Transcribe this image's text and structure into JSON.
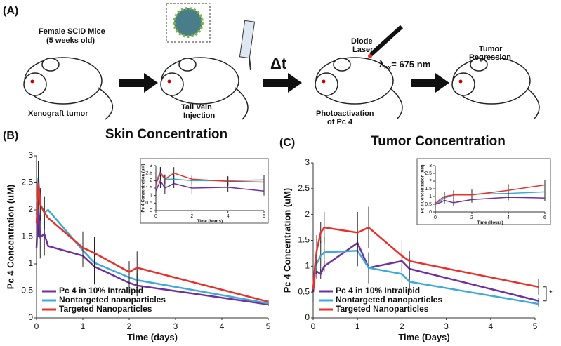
{
  "schematic": {
    "panel_label": "(A)",
    "mice_label_1": "Female SCID Mice",
    "mice_label_2": "(5 weeks old)",
    "tumor_label": "Xenograft tumor",
    "injection_1": "Tail Vein",
    "injection_2": "Injection",
    "delay": "Δt",
    "laser_1": "Diode",
    "laser_2": "Laser",
    "wavelength_symbol": "λ",
    "wavelength_subscript": "ex",
    "wavelength_text": "= 675 nm",
    "photo_1": "Photoactivation",
    "photo_2": "of Pc 4",
    "result_1": "Tumor",
    "result_2": "Regression"
  },
  "chart_data": [
    {
      "type": "line",
      "panel_label": "(B)",
      "title": "Skin Concentration",
      "xlabel": "Time (days)",
      "ylabel": "Pc 4 Concentration (uM)",
      "x": [
        0,
        0.04,
        0.08,
        0.17,
        0.25,
        1,
        1.25,
        2,
        2.17,
        5
      ],
      "xlim": [
        0,
        5
      ],
      "xticks": [
        0,
        1,
        2,
        3,
        4,
        5
      ],
      "ylim": [
        0,
        3
      ],
      "yticks": [
        0,
        0.5,
        1,
        1.5,
        2,
        2.5,
        3
      ],
      "legend": "lower left",
      "series": [
        {
          "name": "Pc 4 in 10% Intralipid",
          "color": "#7030a0",
          "values": [
            1.3,
            2.0,
            1.5,
            1.55,
            1.33,
            1.15,
            0.95,
            0.65,
            0.6,
            0.25
          ],
          "errors": [
            0.3,
            0.5,
            0.4,
            0.4,
            0.3,
            0.2,
            0.3,
            0.2,
            0.2,
            0.03
          ]
        },
        {
          "name": "Nontargeted nanoparticles",
          "color": "#3fa9d8",
          "values": [
            1.9,
            2.6,
            2.1,
            1.95,
            2.0,
            1.25,
            1.02,
            0.75,
            0.7,
            0.27
          ],
          "errors": [
            0.5,
            0.3,
            0.3,
            0.3,
            0.3,
            0.2,
            0.4,
            0.2,
            0.2,
            0.03
          ]
        },
        {
          "name": "Targeted Nanoparticles",
          "color": "#e8312a",
          "values": [
            1.75,
            2.5,
            2.1,
            1.95,
            1.85,
            1.3,
            1.2,
            0.85,
            0.93,
            0.3
          ],
          "errors": [
            0.4,
            0.4,
            0.3,
            0.3,
            0.3,
            0.3,
            0.3,
            0.2,
            0.3,
            0.03
          ]
        }
      ]
    },
    {
      "type": "line",
      "xlabel": "Time (hours)",
      "ylabel": "Pc 4 Concentration (uM)",
      "x": [
        0,
        0.25,
        0.5,
        1,
        2,
        4,
        6
      ],
      "xlim": [
        0,
        6
      ],
      "xticks": [
        0,
        2,
        4,
        6
      ],
      "ylim": [
        0,
        3
      ],
      "yticks": [
        0,
        0.5,
        1,
        1.5,
        2,
        2.5,
        3
      ],
      "series": [
        {
          "name": "Pc 4 in 10% Intralipid",
          "color": "#7030a0",
          "values": [
            1.3,
            2.0,
            1.5,
            1.8,
            1.5,
            1.55,
            1.3
          ],
          "errors": [
            0.3,
            0.5,
            0.4,
            0.3,
            0.4,
            0.3,
            0.3
          ]
        },
        {
          "name": "Nontargeted nanoparticles",
          "color": "#3fa9d8",
          "values": [
            1.9,
            2.6,
            2.1,
            2.1,
            2.0,
            2.0,
            2.05
          ],
          "errors": [
            0.5,
            0.3,
            0.3,
            0.3,
            0.3,
            0.3,
            0.3
          ]
        },
        {
          "name": "Targeted Nanoparticles",
          "color": "#e8312a",
          "values": [
            1.75,
            2.5,
            2.1,
            2.5,
            2.1,
            1.95,
            1.9
          ],
          "errors": [
            0.4,
            0.4,
            0.3,
            0.4,
            0.3,
            0.3,
            0.3
          ]
        }
      ]
    },
    {
      "type": "line",
      "panel_label": "(C)",
      "title": "Tumor Concentration",
      "xlabel": "Time (Days)",
      "ylabel": "Pc 4 Concentration (uM)",
      "x": [
        0,
        0.04,
        0.08,
        0.17,
        0.25,
        1,
        1.25,
        2,
        2.17,
        5.08
      ],
      "xlim": [
        0,
        5
      ],
      "xticks": [
        0,
        1,
        2,
        3,
        4,
        5
      ],
      "ylim": [
        0,
        3
      ],
      "yticks": [
        0,
        0.5,
        1,
        1.5,
        2,
        2.5,
        3
      ],
      "legend": "lower left",
      "annotation": "*",
      "series": [
        {
          "name": "Pc 4 in 10% Intralipid",
          "color": "#7030a0",
          "values": [
            0.5,
            0.85,
            0.9,
            0.85,
            1.0,
            1.45,
            0.97,
            1.1,
            0.95,
            0.33
          ],
          "errors": [
            0.2,
            0.3,
            0.1,
            0.1,
            0.1,
            0.2,
            0.3,
            0.2,
            0.2,
            0.05
          ]
        },
        {
          "name": "Nontargeted nanoparticles",
          "color": "#3fa9d8",
          "values": [
            0.55,
            0.9,
            1.05,
            1.2,
            1.27,
            1.3,
            0.97,
            0.85,
            0.7,
            0.27
          ],
          "errors": [
            0.2,
            0.3,
            0.3,
            0.3,
            0.3,
            0.3,
            0.3,
            0.2,
            0.2,
            0.05
          ]
        },
        {
          "name": "Targeted Nanoparticles",
          "color": "#e8312a",
          "values": [
            0.55,
            1.0,
            1.3,
            1.65,
            1.75,
            1.65,
            1.75,
            1.2,
            1.1,
            0.6
          ],
          "errors": [
            0.2,
            0.3,
            0.3,
            0.2,
            0.3,
            0.4,
            0.4,
            0.3,
            0.2,
            0.15
          ]
        }
      ]
    },
    {
      "type": "line",
      "xlabel": "Time (Hours)",
      "ylabel": "Pc 4 Concentration (uM)",
      "x": [
        0,
        0.25,
        0.5,
        1,
        2,
        4,
        6
      ],
      "xlim": [
        0,
        6
      ],
      "xticks": [
        0,
        2,
        4,
        6
      ],
      "ylim": [
        0,
        3
      ],
      "yticks": [
        0,
        0.5,
        1,
        1.5,
        2,
        2.5,
        3
      ],
      "series": [
        {
          "name": "Pc 4 in 10% Intralipid",
          "color": "#7030a0",
          "values": [
            0.5,
            0.6,
            0.75,
            0.6,
            0.8,
            0.95,
            0.9
          ],
          "errors": [
            0.2,
            0.2,
            0.2,
            0.2,
            0.2,
            0.2,
            0.2
          ]
        },
        {
          "name": "Nontargeted nanoparticles",
          "color": "#3fa9d8",
          "values": [
            0.55,
            0.7,
            0.9,
            1.1,
            1.15,
            1.2,
            1.3
          ],
          "errors": [
            0.2,
            0.2,
            0.3,
            0.2,
            0.3,
            0.3,
            0.3
          ]
        },
        {
          "name": "Targeted Nanoparticles",
          "color": "#e8312a",
          "values": [
            0.55,
            0.8,
            1.0,
            1.1,
            1.1,
            1.4,
            1.75
          ],
          "errors": [
            0.2,
            0.2,
            0.3,
            0.3,
            0.3,
            0.4,
            0.3
          ]
        }
      ]
    }
  ]
}
